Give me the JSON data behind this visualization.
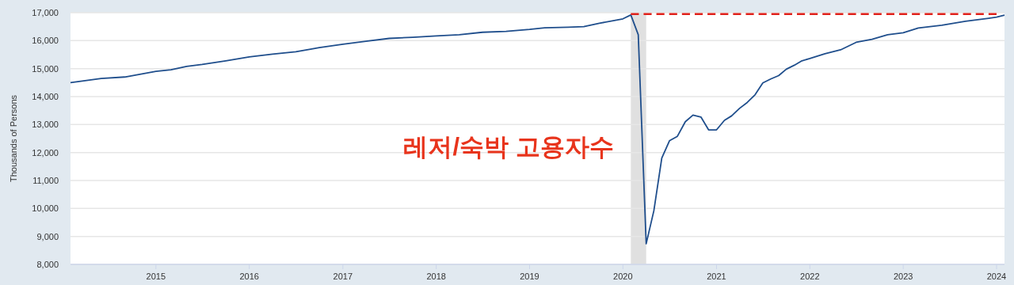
{
  "chart_data": {
    "type": "line",
    "ylabel": "Thousands of Persons",
    "annotations": [
      "레저/숙박 고용자수"
    ],
    "xlim": [
      "2014-02",
      "2024-02"
    ],
    "xticks": [
      {
        "value": "2015-01",
        "label": "2015"
      },
      {
        "value": "2016-01",
        "label": "2016"
      },
      {
        "value": "2017-01",
        "label": "2017"
      },
      {
        "value": "2018-01",
        "label": "2018"
      },
      {
        "value": "2019-01",
        "label": "2019"
      },
      {
        "value": "2020-01",
        "label": "2020"
      },
      {
        "value": "2021-01",
        "label": "2021"
      },
      {
        "value": "2022-01",
        "label": "2022"
      },
      {
        "value": "2023-01",
        "label": "2023"
      },
      {
        "value": "2024-01",
        "label": "2024"
      }
    ],
    "ylim": [
      8000,
      17000
    ],
    "yticks": [
      {
        "value": 8000,
        "label": "8,000"
      },
      {
        "value": 9000,
        "label": "9,000"
      },
      {
        "value": 10000,
        "label": "10,000"
      },
      {
        "value": 11000,
        "label": "11,000"
      },
      {
        "value": 12000,
        "label": "12,000"
      },
      {
        "value": 13000,
        "label": "13,000"
      },
      {
        "value": 14000,
        "label": "14,000"
      },
      {
        "value": 15000,
        "label": "15,000"
      },
      {
        "value": 16000,
        "label": "16,000"
      },
      {
        "value": 17000,
        "label": "17,000"
      }
    ],
    "grid": "y",
    "bands": [
      {
        "axis": "x",
        "from": "2020-02",
        "to": "2020-04",
        "color": "#e0e0e0"
      }
    ],
    "series": [
      {
        "color": "#1f4e8c",
        "x": [
          "2014-02",
          "2014-06",
          "2014-09",
          "2015-01",
          "2015-03",
          "2015-05",
          "2015-07",
          "2015-10",
          "2016-01",
          "2016-04",
          "2016-07",
          "2016-09",
          "2016-10",
          "2017-01",
          "2017-04",
          "2017-07",
          "2017-10",
          "2018-01",
          "2018-04",
          "2018-07",
          "2018-10",
          "2019-01",
          "2019-03",
          "2019-06",
          "2019-08",
          "2019-10",
          "2020-01",
          "2020-02",
          "2020-03",
          "2020-04",
          "2020-05",
          "2020-06",
          "2020-07",
          "2020-08",
          "2020-09",
          "2020-10",
          "2020-11",
          "2020-12",
          "2021-01",
          "2021-02",
          "2021-03",
          "2021-04",
          "2021-05",
          "2021-06",
          "2021-07",
          "2021-08",
          "2021-09",
          "2021-10",
          "2021-11",
          "2021-12",
          "2022-01",
          "2022-03",
          "2022-05",
          "2022-07",
          "2022-09",
          "2022-11",
          "2023-01",
          "2023-03",
          "2023-06",
          "2023-09",
          "2023-12",
          "2024-01",
          "2024-02"
        ],
        "values": [
          14500,
          14650,
          14700,
          14900,
          14960,
          15080,
          15150,
          15280,
          15420,
          15520,
          15600,
          15700,
          15750,
          15870,
          15980,
          16080,
          16120,
          16170,
          16210,
          16300,
          16330,
          16400,
          16460,
          16480,
          16500,
          16620,
          16780,
          16920,
          16210,
          8740,
          9920,
          11800,
          12420,
          12580,
          13100,
          13340,
          13270,
          12810,
          12810,
          13150,
          13310,
          13580,
          13790,
          14070,
          14490,
          14630,
          14750,
          14980,
          15120,
          15280,
          15360,
          15530,
          15670,
          15940,
          16050,
          16210,
          16280,
          16450,
          16550,
          16690,
          16800,
          16840,
          16910
        ]
      },
      {
        "color": "#e0201a",
        "line_style": "dashed",
        "x": [
          "2020-02",
          "2024-01"
        ],
        "values": [
          16950,
          16950
        ]
      }
    ]
  }
}
